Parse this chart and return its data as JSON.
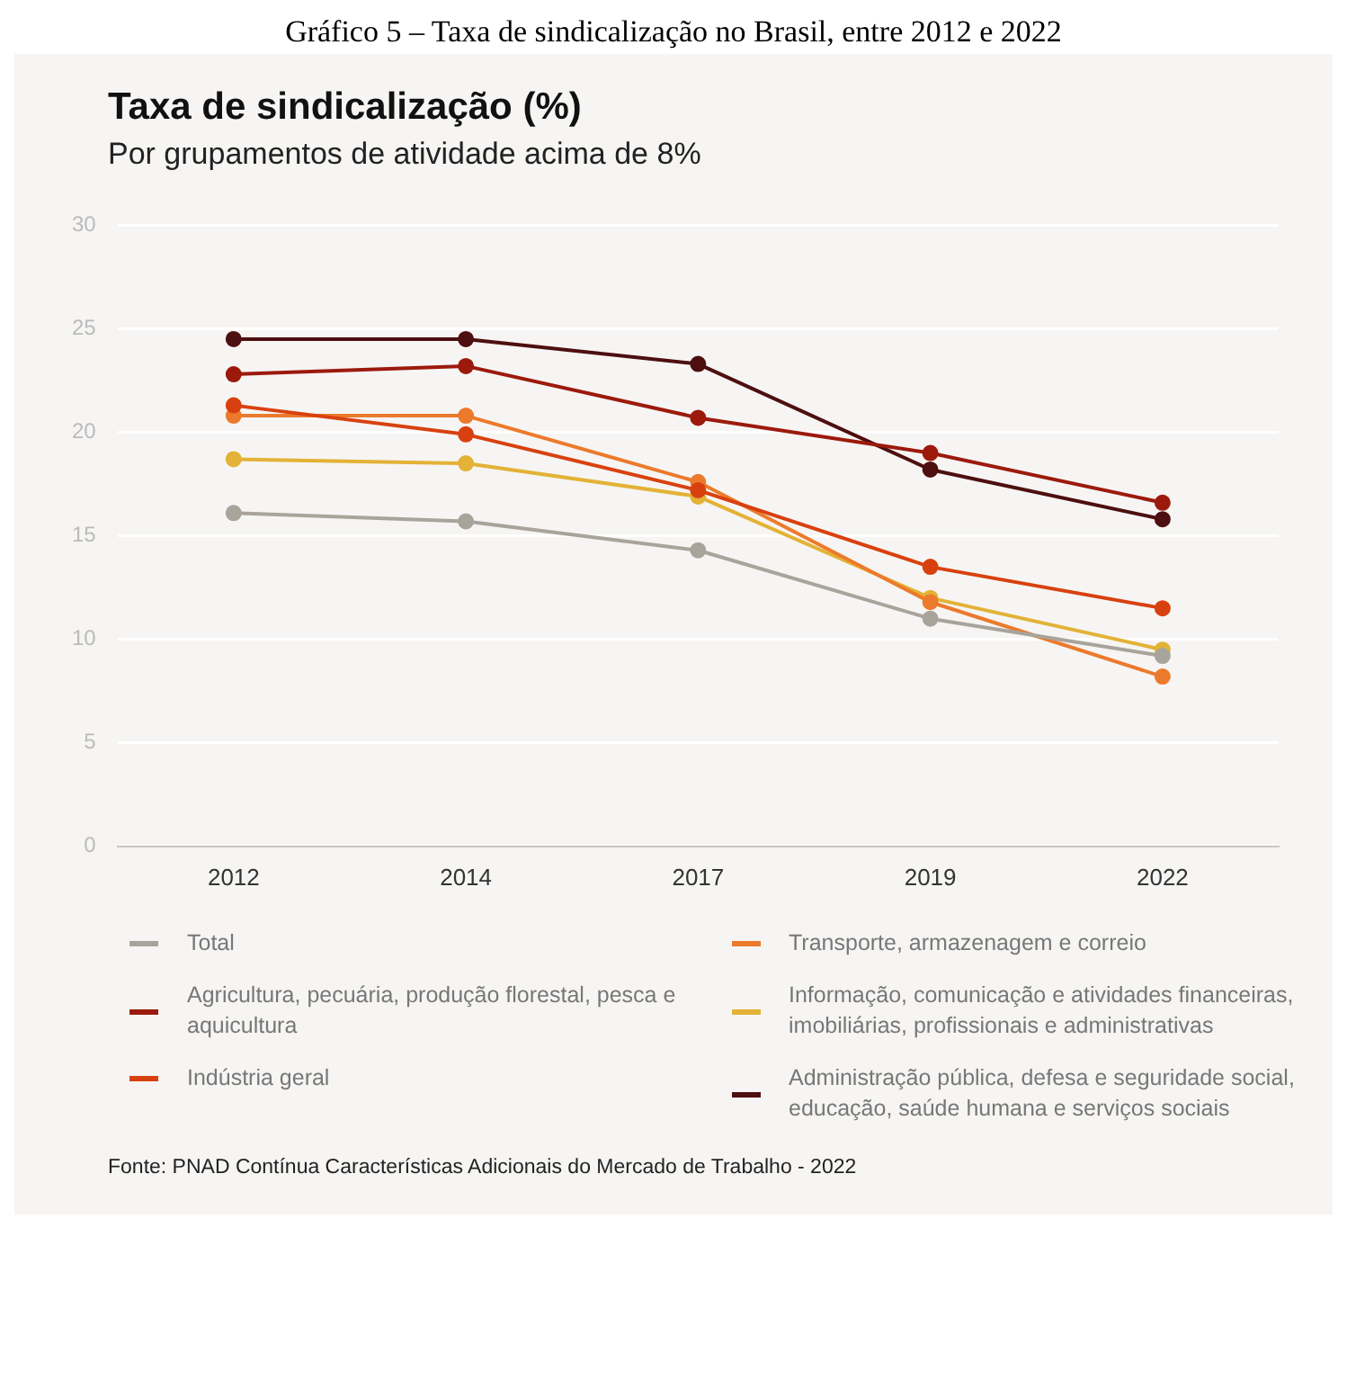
{
  "chart_data": {
    "type": "line",
    "title": "Taxa de sindicalização (%)",
    "subtitle": "Por grupamentos de atividade acima de 8%",
    "annotations": [
      "Gráfico 5 – Taxa de sindicalização no Brasil, entre 2012 e 2022",
      "Fonte: PNAD Contínua Características Adicionais do Mercado de Trabalho - 2022"
    ],
    "categories": [
      "2012",
      "2014",
      "2017",
      "2019",
      "2022"
    ],
    "series": [
      {
        "name": "Total",
        "color": "#a8a49c",
        "values": [
          16.1,
          15.7,
          14.3,
          11.0,
          9.2
        ]
      },
      {
        "name": "Agricultura, pecuária, produção florestal, pesca e aquicultura",
        "color": "#9c1a0c",
        "values": [
          22.8,
          23.2,
          20.7,
          19.0,
          16.6
        ]
      },
      {
        "name": "Indústria geral",
        "color": "#d8410f",
        "values": [
          21.3,
          19.9,
          17.2,
          13.5,
          11.5
        ]
      },
      {
        "name": "Transporte, armazenagem e correio",
        "color": "#ec7a2c",
        "values": [
          20.8,
          20.8,
          17.6,
          11.8,
          8.2
        ]
      },
      {
        "name": "Informação, comunicação e atividades financeiras, imobiliárias, profissionais e administrativas",
        "color": "#e3b236",
        "values": [
          18.7,
          18.5,
          16.9,
          12.0,
          9.5
        ]
      },
      {
        "name": "Administração pública, defesa e seguridade social, educação, saúde humana e serviços sociais",
        "color": "#4d0f0f",
        "values": [
          24.5,
          24.5,
          23.3,
          18.2,
          15.8
        ]
      }
    ],
    "ylim": [
      0,
      30
    ],
    "yticks": [
      0,
      5,
      10,
      15,
      20,
      25,
      30
    ],
    "grid": "y",
    "legend": "bottom",
    "marker": "circle",
    "line_style": "solid"
  }
}
